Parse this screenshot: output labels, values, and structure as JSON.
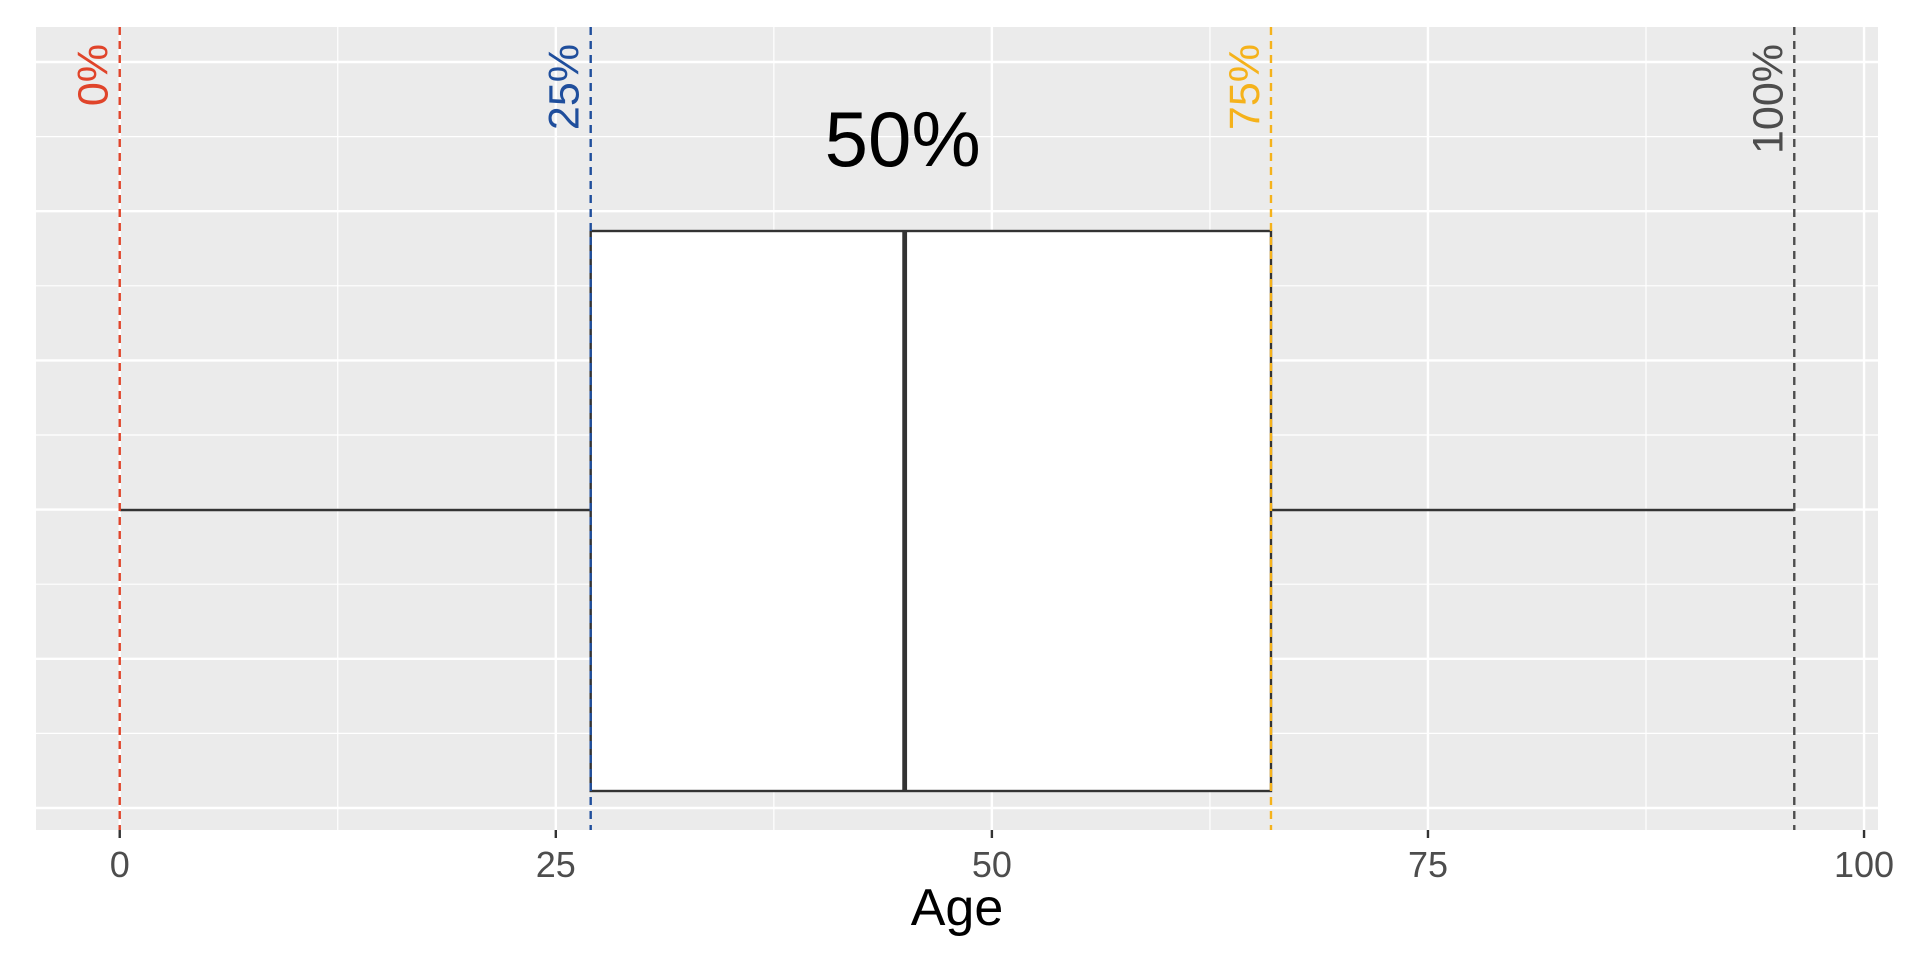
{
  "chart_data": {
    "type": "boxplot",
    "xlabel": "Age",
    "ylabel": "",
    "xlim": [
      -4.8,
      100.8
    ],
    "x_ticks": [
      0,
      25,
      50,
      75,
      100
    ],
    "x_tick_labels": [
      "0",
      "25",
      "50",
      "75",
      "100"
    ],
    "grid": true,
    "box": {
      "min": 0,
      "q1": 27,
      "median": 45,
      "q3": 66,
      "max": 96
    },
    "quantile_lines": [
      {
        "label": "0%",
        "value": 0,
        "color": "#e0442a"
      },
      {
        "label": "25%",
        "value": 27,
        "color": "#1f4e9c"
      },
      {
        "label": "75%",
        "value": 66,
        "color": "#f5b21b"
      },
      {
        "label": "100%",
        "value": 96,
        "color": "#4d4d4d"
      }
    ],
    "center_label": {
      "text": "50%",
      "x": 45
    }
  },
  "colors": {
    "panel_background": "#ebebeb",
    "grid_line": "#ffffff",
    "box_fill": "#ffffff",
    "box_stroke": "#333333"
  }
}
